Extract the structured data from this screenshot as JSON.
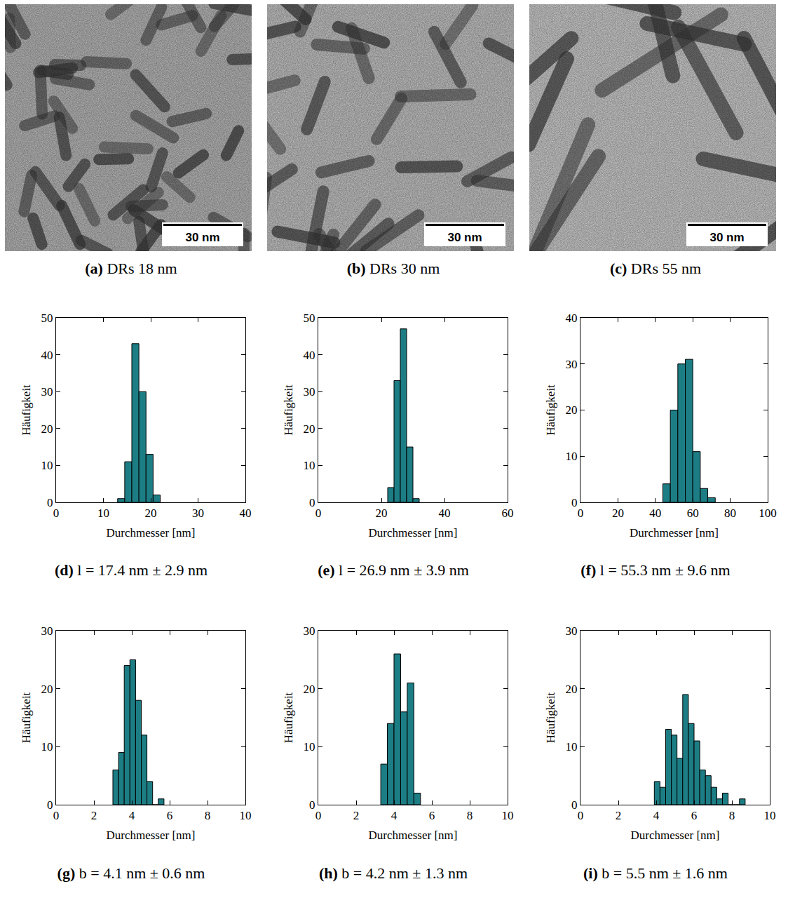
{
  "images": [
    {
      "label": "(a)",
      "caption": "DRs 18 nm",
      "scale_bar": "30 nm"
    },
    {
      "label": "(b)",
      "caption": "DRs 30 nm",
      "scale_bar": "30 nm"
    },
    {
      "label": "(c)",
      "caption": "DRs 55 nm",
      "scale_bar": "30 nm"
    }
  ],
  "chart_data": [
    {
      "type": "histogram",
      "label": "(d)",
      "caption": "l = 17.4 nm ± 2.9 nm",
      "x_label": "Durchmesser [nm]",
      "y_label": "Häufigkeit",
      "bins": [
        13,
        14.5,
        16,
        17.5,
        19,
        20.5,
        22
      ],
      "counts": [
        1,
        11,
        43,
        30,
        13,
        2
      ],
      "color": "#1d7d84",
      "xlim": [
        0,
        40
      ],
      "ylim": [
        0,
        50
      ],
      "xticks": [
        0,
        10,
        20,
        30,
        40
      ],
      "yticks": [
        0,
        10,
        20,
        30,
        40,
        50
      ]
    },
    {
      "type": "histogram",
      "label": "(e)",
      "caption": "l = 26.9 nm ± 3.9 nm",
      "x_label": "Durchmesser [nm]",
      "y_label": "Häufigkeit",
      "bins": [
        22,
        24,
        26,
        28,
        30,
        32
      ],
      "counts": [
        4,
        33,
        47,
        15,
        1
      ],
      "color": "#1d7d84",
      "xlim": [
        0,
        60
      ],
      "ylim": [
        0,
        50
      ],
      "xticks": [
        0,
        20,
        40,
        60
      ],
      "yticks": [
        0,
        10,
        20,
        30,
        40,
        50
      ]
    },
    {
      "type": "histogram",
      "label": "(f)",
      "caption": "l = 55.3 nm ± 9.6 nm",
      "x_label": "Durchmesser [nm]",
      "y_label": "Häufigkeit",
      "bins": [
        44,
        48,
        52,
        56,
        60,
        64,
        68,
        72
      ],
      "counts": [
        4,
        20,
        30,
        31,
        11,
        3,
        1
      ],
      "color": "#1d7d84",
      "xlim": [
        0,
        100
      ],
      "ylim": [
        0,
        40
      ],
      "xticks": [
        0,
        20,
        40,
        60,
        80,
        100
      ],
      "yticks": [
        0,
        10,
        20,
        30,
        40
      ]
    },
    {
      "type": "histogram",
      "label": "(g)",
      "caption": "b = 4.1 nm ± 0.6 nm",
      "x_label": "Durchmesser [nm]",
      "y_label": "Häufigkeit",
      "bins": [
        3.0,
        3.3,
        3.6,
        3.9,
        4.2,
        4.5,
        4.8,
        5.1,
        5.4,
        5.7
      ],
      "counts": [
        6,
        9,
        24,
        25,
        18,
        12,
        4,
        0,
        1
      ],
      "color": "#1d7d84",
      "xlim": [
        0,
        10
      ],
      "ylim": [
        0,
        30
      ],
      "xticks": [
        0,
        2,
        4,
        6,
        8,
        10
      ],
      "yticks": [
        0,
        10,
        20,
        30
      ]
    },
    {
      "type": "histogram",
      "label": "(h)",
      "caption": "b = 4.2 nm ± 1.3 nm",
      "x_label": "Durchmesser [nm]",
      "y_label": "Häufigkeit",
      "bins": [
        3.3,
        3.65,
        4.0,
        4.35,
        4.7,
        5.05,
        5.4
      ],
      "counts": [
        7,
        14,
        26,
        16,
        21,
        2
      ],
      "color": "#1d7d84",
      "xlim": [
        0,
        10
      ],
      "ylim": [
        0,
        30
      ],
      "xticks": [
        0,
        2,
        4,
        6,
        8,
        10
      ],
      "yticks": [
        0,
        10,
        20,
        30
      ]
    },
    {
      "type": "histogram",
      "label": "(i)",
      "caption": "b = 5.5 nm ± 1.6 nm",
      "x_label": "Durchmesser [nm]",
      "y_label": "Häufigkeit",
      "bins": [
        3.9,
        4.2,
        4.5,
        4.8,
        5.1,
        5.4,
        5.7,
        6.0,
        6.3,
        6.6,
        6.9,
        7.2,
        7.5,
        7.8,
        8.1,
        8.4,
        8.7
      ],
      "counts": [
        4,
        3,
        13,
        12,
        8,
        19,
        14,
        11,
        6,
        5,
        3,
        1,
        2,
        0,
        0,
        1
      ],
      "color": "#1d7d84",
      "xlim": [
        0,
        10
      ],
      "ylim": [
        0,
        30
      ],
      "xticks": [
        0,
        2,
        4,
        6,
        8,
        10
      ],
      "yticks": [
        0,
        10,
        20,
        30
      ]
    }
  ]
}
